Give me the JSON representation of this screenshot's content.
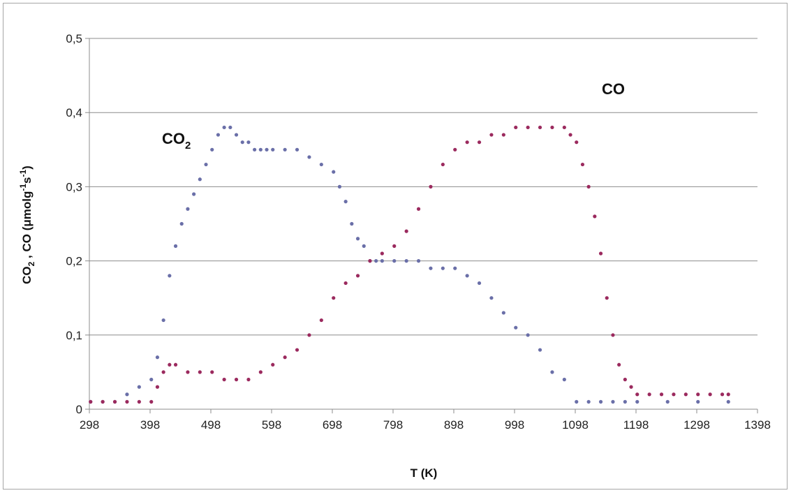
{
  "chart_data": {
    "type": "scatter",
    "xlabel": "T (K)",
    "ylabel": "CO2 , CO (μmolg-1s-1)",
    "ylabel_parts": [
      "CO",
      "2",
      " , CO (μmolg",
      "-1",
      "s",
      "-1",
      ")"
    ],
    "x_ticks": [
      "298",
      "398",
      "498",
      "598",
      "698",
      "798",
      "898",
      "998",
      "1098",
      "1198",
      "1298",
      "1398"
    ],
    "y_ticks": [
      "0",
      "0,1",
      "0,2",
      "0,3",
      "0,4",
      "0,5"
    ],
    "xlim": [
      298,
      1398
    ],
    "ylim": [
      0,
      0.5
    ],
    "grid": "horizontal major",
    "legend": "none",
    "annotations": [
      {
        "text": "CO",
        "sub": "2",
        "series": "CO2"
      },
      {
        "text": "CO",
        "sub": "",
        "series": "CO"
      }
    ],
    "series": [
      {
        "name": "CO2",
        "color": "#6a6fa8",
        "x": [
          300,
          320,
          340,
          360,
          380,
          400,
          410,
          420,
          430,
          440,
          450,
          460,
          470,
          480,
          490,
          500,
          510,
          520,
          530,
          540,
          550,
          560,
          570,
          580,
          590,
          600,
          620,
          640,
          660,
          680,
          700,
          710,
          720,
          730,
          740,
          750,
          760,
          770,
          780,
          800,
          820,
          840,
          860,
          880,
          900,
          920,
          940,
          960,
          980,
          1000,
          1020,
          1040,
          1060,
          1080,
          1100,
          1120,
          1140,
          1160,
          1180,
          1200,
          1250,
          1300,
          1350
        ],
        "y": [
          0.01,
          0.01,
          0.01,
          0.02,
          0.03,
          0.04,
          0.07,
          0.12,
          0.18,
          0.22,
          0.25,
          0.27,
          0.29,
          0.31,
          0.33,
          0.35,
          0.37,
          0.38,
          0.38,
          0.37,
          0.36,
          0.36,
          0.35,
          0.35,
          0.35,
          0.35,
          0.35,
          0.35,
          0.34,
          0.33,
          0.32,
          0.3,
          0.28,
          0.25,
          0.23,
          0.22,
          0.2,
          0.2,
          0.2,
          0.2,
          0.2,
          0.2,
          0.19,
          0.19,
          0.19,
          0.18,
          0.17,
          0.15,
          0.13,
          0.11,
          0.1,
          0.08,
          0.05,
          0.04,
          0.01,
          0.01,
          0.01,
          0.01,
          0.01,
          0.01,
          0.01,
          0.01,
          0.01
        ]
      },
      {
        "name": "CO",
        "color": "#9b2a5e",
        "x": [
          300,
          320,
          340,
          360,
          380,
          400,
          410,
          420,
          430,
          440,
          460,
          480,
          500,
          520,
          540,
          560,
          580,
          600,
          620,
          640,
          660,
          680,
          700,
          720,
          740,
          760,
          780,
          800,
          820,
          840,
          860,
          880,
          900,
          920,
          940,
          960,
          980,
          1000,
          1020,
          1040,
          1060,
          1080,
          1090,
          1100,
          1110,
          1120,
          1130,
          1140,
          1150,
          1160,
          1170,
          1180,
          1190,
          1200,
          1220,
          1240,
          1260,
          1280,
          1300,
          1320,
          1340,
          1350
        ],
        "y": [
          0.01,
          0.01,
          0.01,
          0.01,
          0.01,
          0.01,
          0.03,
          0.05,
          0.06,
          0.06,
          0.05,
          0.05,
          0.05,
          0.04,
          0.04,
          0.04,
          0.05,
          0.06,
          0.07,
          0.08,
          0.1,
          0.12,
          0.15,
          0.17,
          0.18,
          0.2,
          0.21,
          0.22,
          0.24,
          0.27,
          0.3,
          0.33,
          0.35,
          0.36,
          0.36,
          0.37,
          0.37,
          0.38,
          0.38,
          0.38,
          0.38,
          0.38,
          0.37,
          0.36,
          0.33,
          0.3,
          0.26,
          0.21,
          0.15,
          0.1,
          0.06,
          0.04,
          0.03,
          0.02,
          0.02,
          0.02,
          0.02,
          0.02,
          0.02,
          0.02,
          0.02,
          0.02
        ]
      }
    ]
  }
}
